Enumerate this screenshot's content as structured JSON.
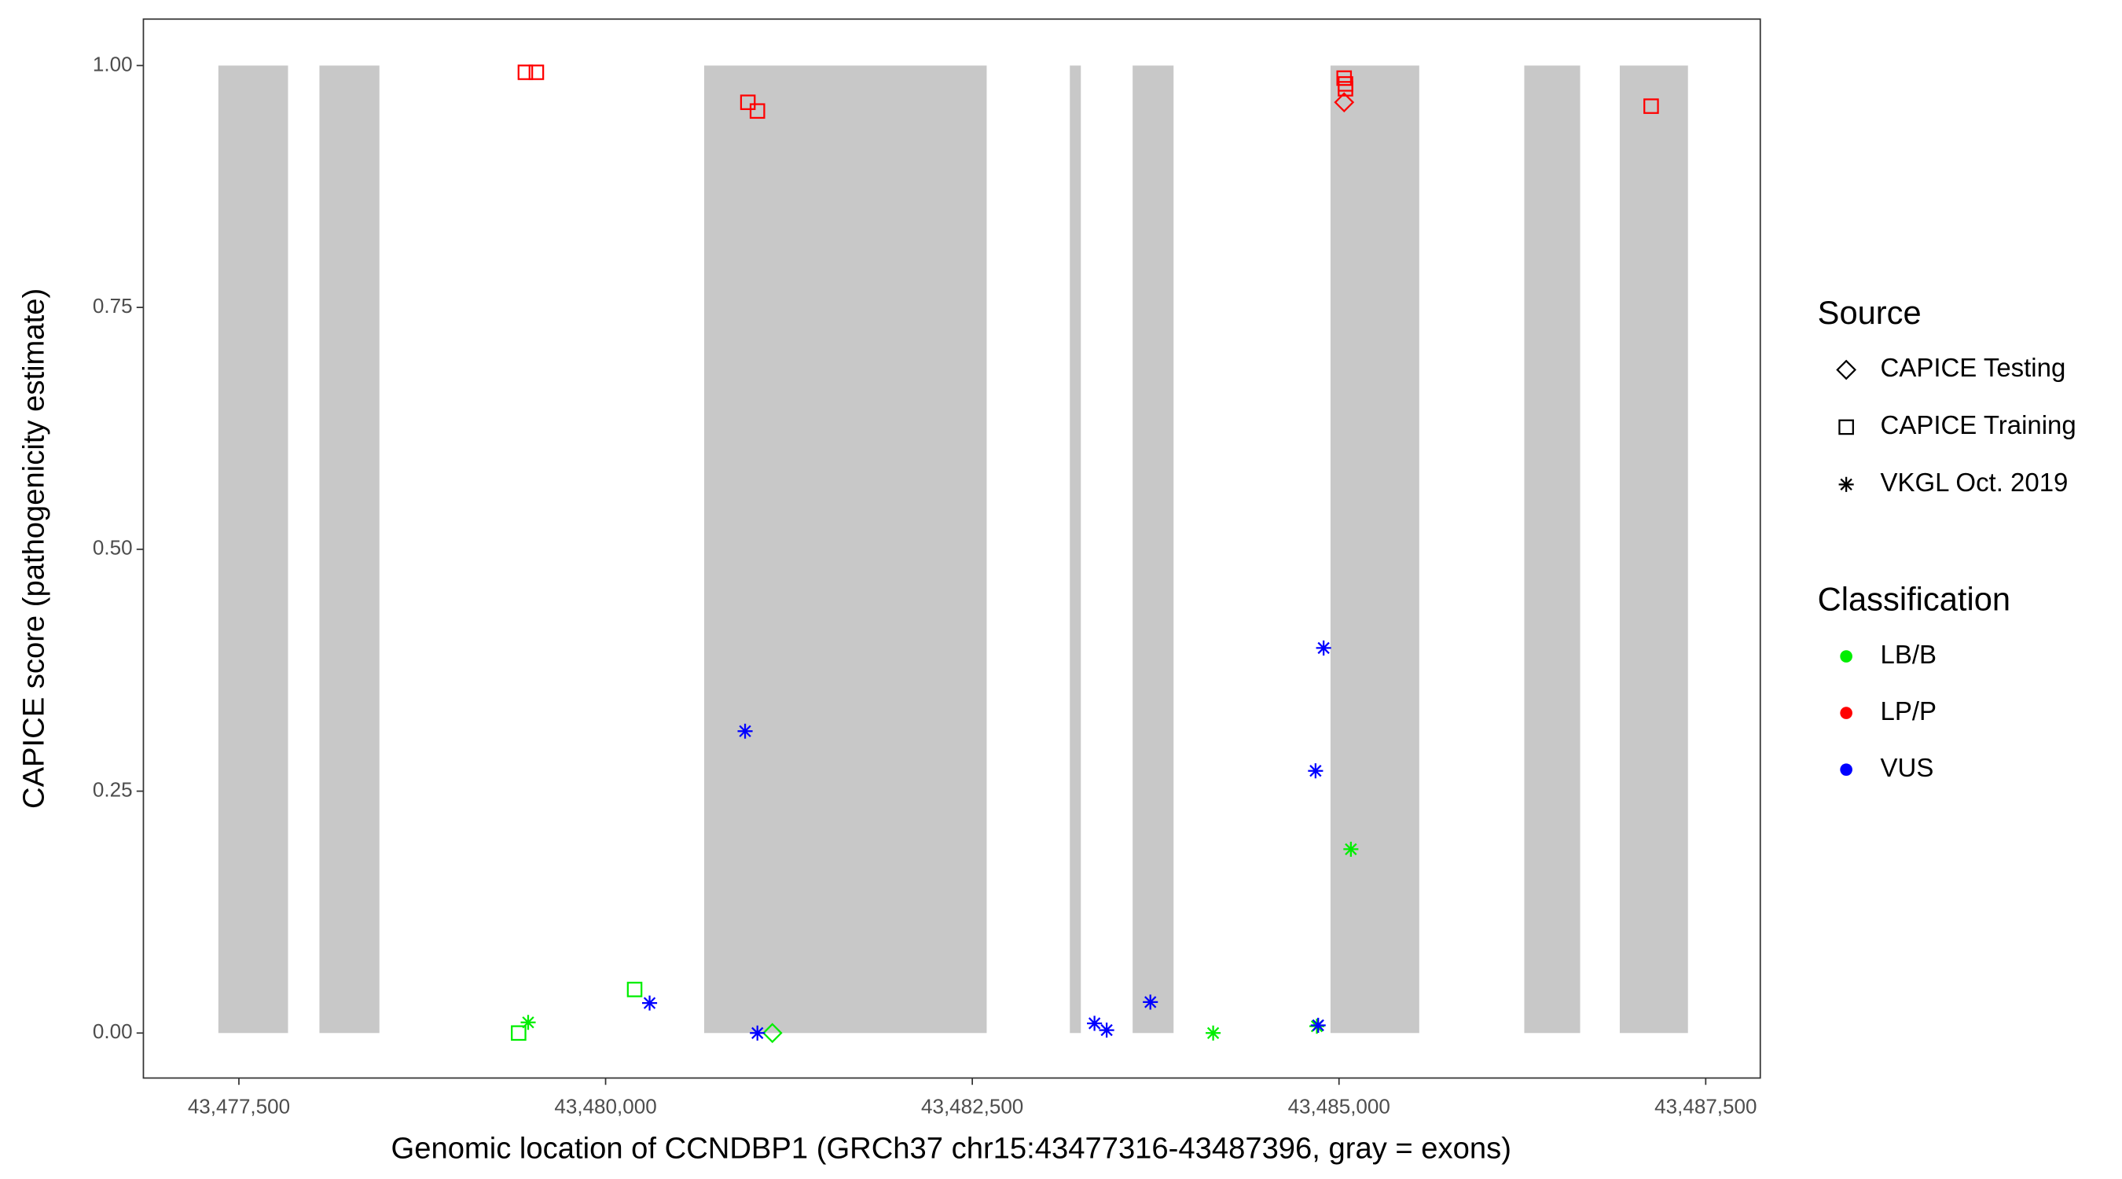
{
  "chart_data": {
    "type": "scatter",
    "xlabel": "Genomic location of CCNDBP1 (GRCh37 chr15:43477316-43487396, gray = exons)",
    "ylabel": "CAPICE score (pathogenicity estimate)",
    "xlim": [
      43476849,
      43487872
    ],
    "ylim": [
      -0.0465,
      1.048
    ],
    "xticks": [
      {
        "value": 43477500,
        "label": "43,477,500"
      },
      {
        "value": 43480000,
        "label": "43,480,000"
      },
      {
        "value": 43482500,
        "label": "43,482,500"
      },
      {
        "value": 43485000,
        "label": "43,485,000"
      },
      {
        "value": 43487500,
        "label": "43,487,500"
      }
    ],
    "yticks": [
      {
        "value": 0,
        "label": "0.00"
      },
      {
        "value": 0.25,
        "label": "0.25"
      },
      {
        "value": 0.5,
        "label": "0.50"
      },
      {
        "value": 0.75,
        "label": "0.75"
      },
      {
        "value": 1,
        "label": "1.00"
      }
    ],
    "exon_color": "#c8c8c8",
    "exons": [
      [
        43477360,
        43477835
      ],
      [
        43478049,
        43478458
      ],
      [
        43480672,
        43482598
      ],
      [
        43483165,
        43483240
      ],
      [
        43483593,
        43483872
      ],
      [
        43484942,
        43485547
      ],
      [
        43486263,
        43486644
      ],
      [
        43486914,
        43487379
      ]
    ],
    "legend_source_title": "Source",
    "sources": [
      {
        "name": "CAPICE Testing",
        "shape": "diamond"
      },
      {
        "name": "CAPICE Training",
        "shape": "square"
      },
      {
        "name": "VKGL Oct. 2019",
        "shape": "asterisk"
      }
    ],
    "legend_class_title": "Classification",
    "classes": [
      {
        "name": "LB/B",
        "color": "#00ee00"
      },
      {
        "name": "LP/P",
        "color": "#ff0000"
      },
      {
        "name": "VUS",
        "color": "#0000ff"
      }
    ],
    "points": {
      "x": [
        43479453,
        43479528,
        43480970,
        43481035,
        43485035,
        43485044,
        43485044,
        43487128,
        43485035,
        43479407,
        43480198,
        43479472,
        43484142,
        43484849,
        43485081,
        43481137,
        43480300,
        43480951,
        43481035,
        43483333,
        43483416,
        43483714,
        43484858,
        43484840,
        43484895
      ],
      "y": [
        0.993,
        0.993,
        0.962,
        0.953,
        0.987,
        0.981,
        0.976,
        0.958,
        0.962,
        0,
        0.045,
        0.011,
        0,
        0.007,
        0.19,
        0,
        0.031,
        0.312,
        0,
        0.01,
        0.003,
        0.032,
        0.008,
        0.271,
        0.398
      ],
      "source": [
        1,
        1,
        1,
        1,
        1,
        1,
        1,
        1,
        0,
        1,
        1,
        2,
        2,
        2,
        2,
        0,
        2,
        2,
        2,
        2,
        2,
        2,
        2,
        2,
        2
      ],
      "class": [
        1,
        1,
        1,
        1,
        1,
        1,
        1,
        1,
        1,
        0,
        0,
        0,
        0,
        0,
        0,
        0,
        2,
        2,
        2,
        2,
        2,
        2,
        2,
        2,
        2
      ]
    }
  }
}
